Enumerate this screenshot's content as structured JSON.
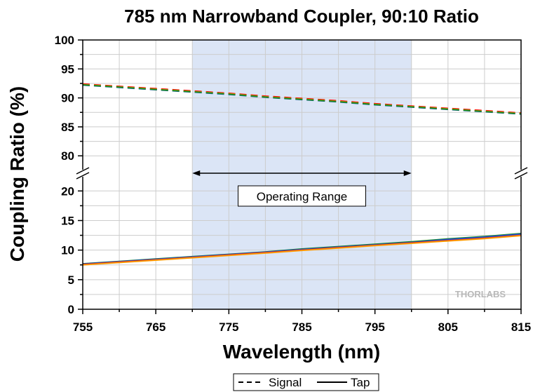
{
  "chart_data": {
    "type": "line",
    "title": "785 nm Narrowband Coupler, 90:10 Ratio",
    "xlabel": "Wavelength (nm)",
    "ylabel": "Coupling Ratio (%)",
    "xlim": [
      755,
      815
    ],
    "xticks": [
      755,
      765,
      775,
      785,
      795,
      805,
      815
    ],
    "y_axis_break": true,
    "ylim_upper_panel": [
      77,
      100
    ],
    "yticks_upper_panel": [
      80,
      85,
      90,
      95,
      100
    ],
    "ylim_lower_panel": [
      0,
      23
    ],
    "yticks_lower_panel": [
      0,
      5,
      10,
      15,
      20
    ],
    "grid": true,
    "legend_position": "bottom",
    "legend": [
      {
        "label": "Signal",
        "style": "dashed"
      },
      {
        "label": "Tap",
        "style": "solid"
      }
    ],
    "shaded_region": {
      "x": [
        770,
        800
      ],
      "color": "#dbe5f6"
    },
    "annotation": {
      "text": "Operating Range",
      "x": [
        770,
        800
      ]
    },
    "watermark": "THORLABS",
    "x": [
      755,
      760,
      765,
      770,
      775,
      780,
      785,
      790,
      795,
      800,
      805,
      810,
      815
    ],
    "series": [
      {
        "group": "Signal",
        "style": "dashed",
        "color": "#ff0000",
        "values": [
          92.4,
          92.0,
          91.6,
          91.2,
          90.8,
          90.3,
          89.9,
          89.5,
          89.0,
          88.6,
          88.2,
          87.8,
          87.4
        ]
      },
      {
        "group": "Signal",
        "style": "dashed",
        "color": "#ff9900",
        "values": [
          92.3,
          91.9,
          91.5,
          91.1,
          90.7,
          90.2,
          89.8,
          89.4,
          88.9,
          88.5,
          88.1,
          87.7,
          87.3
        ]
      },
      {
        "group": "Signal",
        "style": "dashed",
        "color": "#2050d0",
        "values": [
          92.2,
          91.8,
          91.4,
          91.0,
          90.6,
          90.1,
          89.7,
          89.3,
          88.8,
          88.4,
          88.0,
          87.6,
          87.2
        ]
      },
      {
        "group": "Signal",
        "style": "dashed",
        "color": "#1e8c1e",
        "values": [
          92.25,
          91.85,
          91.45,
          91.05,
          90.65,
          90.15,
          89.75,
          89.35,
          88.85,
          88.45,
          88.05,
          87.65,
          87.25
        ]
      },
      {
        "group": "Tap",
        "style": "solid",
        "color": "#1e8c1e",
        "values": [
          7.7,
          8.1,
          8.5,
          8.9,
          9.3,
          9.7,
          10.2,
          10.6,
          11.0,
          11.4,
          11.9,
          12.3,
          12.8
        ]
      },
      {
        "group": "Tap",
        "style": "solid",
        "color": "#2050d0",
        "values": [
          7.65,
          8.05,
          8.45,
          8.85,
          9.25,
          9.65,
          10.1,
          10.5,
          10.9,
          11.3,
          11.8,
          12.2,
          12.7
        ]
      },
      {
        "group": "Tap",
        "style": "solid",
        "color": "#ff0000",
        "values": [
          7.55,
          7.95,
          8.35,
          8.75,
          9.15,
          9.55,
          10.0,
          10.4,
          10.8,
          11.2,
          11.6,
          12.0,
          12.5
        ]
      },
      {
        "group": "Tap",
        "style": "solid",
        "color": "#ff9900",
        "values": [
          7.5,
          7.9,
          8.3,
          8.7,
          9.1,
          9.5,
          9.95,
          10.35,
          10.75,
          11.15,
          11.55,
          11.95,
          12.45
        ]
      }
    ]
  }
}
